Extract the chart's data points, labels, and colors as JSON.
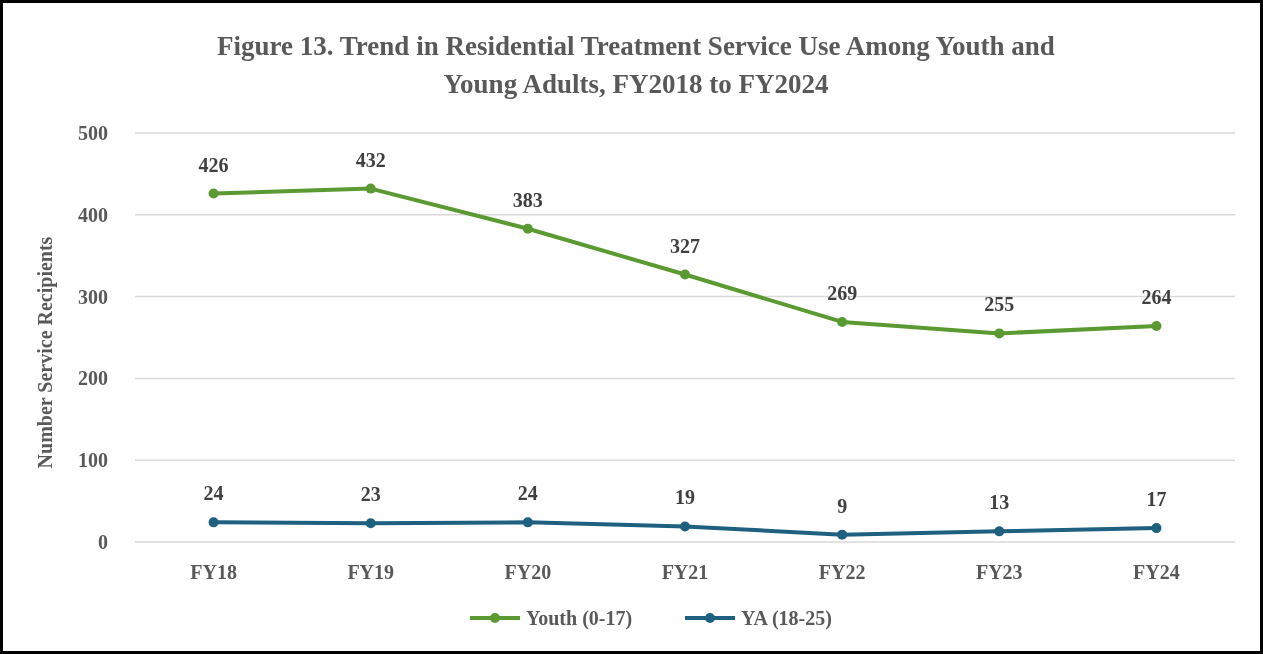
{
  "chart_data": {
    "type": "line",
    "title": "Figure 13. Trend in Residential Treatment Service Use Among Youth and Young Adults, FY2018 to FY2024",
    "ylabel": "Number Service Recipients",
    "categories": [
      "FY18",
      "FY19",
      "FY20",
      "FY21",
      "FY22",
      "FY23",
      "FY24"
    ],
    "series": [
      {
        "name": "Youth (0-17)",
        "color": "#5b9a32",
        "values": [
          426,
          432,
          383,
          327,
          269,
          255,
          264
        ]
      },
      {
        "name": "YA (18-25)",
        "color": "#1f5f7f",
        "values": [
          24,
          23,
          24,
          19,
          9,
          13,
          17
        ]
      }
    ],
    "ylim": [
      0,
      500
    ],
    "yticks": [
      0,
      100,
      200,
      300,
      400,
      500
    ],
    "grid": "y",
    "legend": "bottom",
    "marker": "circle",
    "line_style": "solid",
    "data_labels": true
  }
}
